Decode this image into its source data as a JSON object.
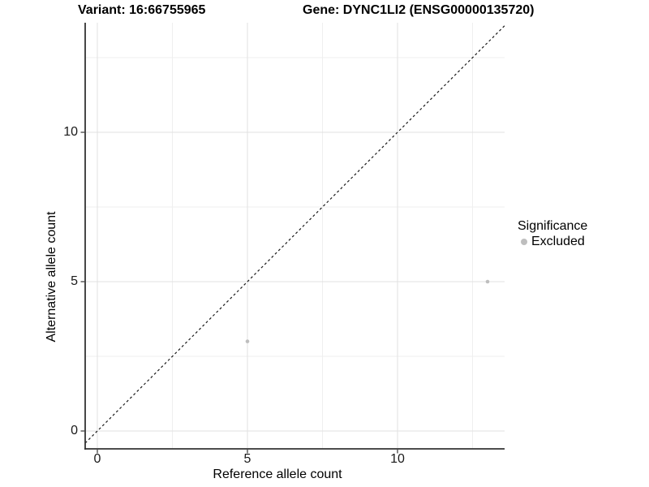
{
  "chart_data": {
    "type": "scatter",
    "title_left": "Variant: 16:66755965",
    "title_right": "Gene: DYNC1LI2 (ENSG00000135720)",
    "xlabel": "Reference allele count",
    "ylabel": "Alternative allele count",
    "xlim": [
      -0.4,
      13.6
    ],
    "ylim": [
      -0.6,
      13.7
    ],
    "x_major_ticks": [
      0,
      5,
      10
    ],
    "x_minor_ticks": [
      2.5,
      7.5,
      12.5
    ],
    "y_major_ticks": [
      0,
      5,
      10
    ],
    "y_minor_ticks": [
      2.5,
      7.5,
      12.5
    ],
    "grid": true,
    "identity_line": {
      "style": "dashed",
      "slope": 1,
      "intercept": 0
    },
    "series": [
      {
        "name": "Excluded",
        "color": "#bebebe",
        "points": [
          {
            "x": 5,
            "y": 3
          },
          {
            "x": 13,
            "y": 5
          }
        ]
      }
    ],
    "legend": {
      "title": "Significance",
      "position": "right",
      "items": [
        {
          "label": "Excluded",
          "color": "#bebebe"
        }
      ]
    }
  },
  "colors": {
    "point_gray": "#bebebe",
    "grid_major": "#e2e2e2",
    "grid_minor": "#efefef",
    "axis_line": "#333333",
    "identity_line": "#1a1a1a",
    "background": "#ffffff"
  }
}
